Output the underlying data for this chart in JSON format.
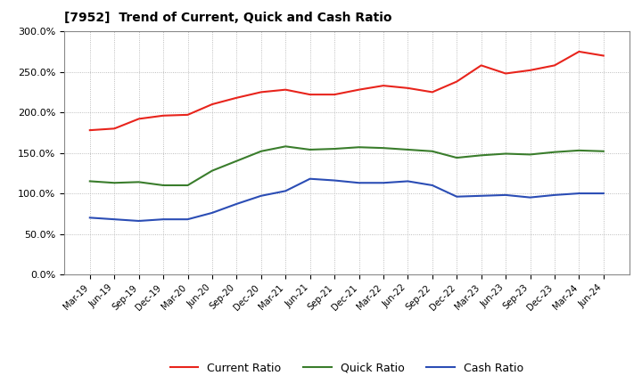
{
  "title": "[7952]  Trend of Current, Quick and Cash Ratio",
  "x_labels": [
    "Mar-19",
    "Jun-19",
    "Sep-19",
    "Dec-19",
    "Mar-20",
    "Jun-20",
    "Sep-20",
    "Dec-20",
    "Mar-21",
    "Jun-21",
    "Sep-21",
    "Dec-21",
    "Mar-22",
    "Jun-22",
    "Sep-22",
    "Dec-22",
    "Mar-23",
    "Jun-23",
    "Sep-23",
    "Dec-23",
    "Mar-24",
    "Jun-24"
  ],
  "current_ratio": [
    178,
    180,
    192,
    196,
    197,
    210,
    218,
    225,
    228,
    222,
    222,
    228,
    233,
    230,
    225,
    238,
    258,
    248,
    252,
    258,
    275,
    270
  ],
  "quick_ratio": [
    115,
    113,
    114,
    110,
    110,
    128,
    140,
    152,
    158,
    154,
    155,
    157,
    156,
    154,
    152,
    144,
    147,
    149,
    148,
    151,
    153,
    152
  ],
  "cash_ratio": [
    70,
    68,
    66,
    68,
    68,
    76,
    87,
    97,
    103,
    118,
    116,
    113,
    113,
    115,
    110,
    96,
    97,
    98,
    95,
    98,
    100,
    100
  ],
  "current_color": "#e8241c",
  "quick_color": "#3a7d2c",
  "cash_color": "#2b4db5",
  "ylim": [
    0,
    300
  ],
  "yticks": [
    0,
    50,
    100,
    150,
    200,
    250,
    300
  ],
  "ytick_labels": [
    "0.0%",
    "50.0%",
    "100.0%",
    "150.0%",
    "200.0%",
    "250.0%",
    "300.0%"
  ],
  "grid_color": "#aaaaaa",
  "background_color": "#ffffff",
  "legend_labels": [
    "Current Ratio",
    "Quick Ratio",
    "Cash Ratio"
  ]
}
